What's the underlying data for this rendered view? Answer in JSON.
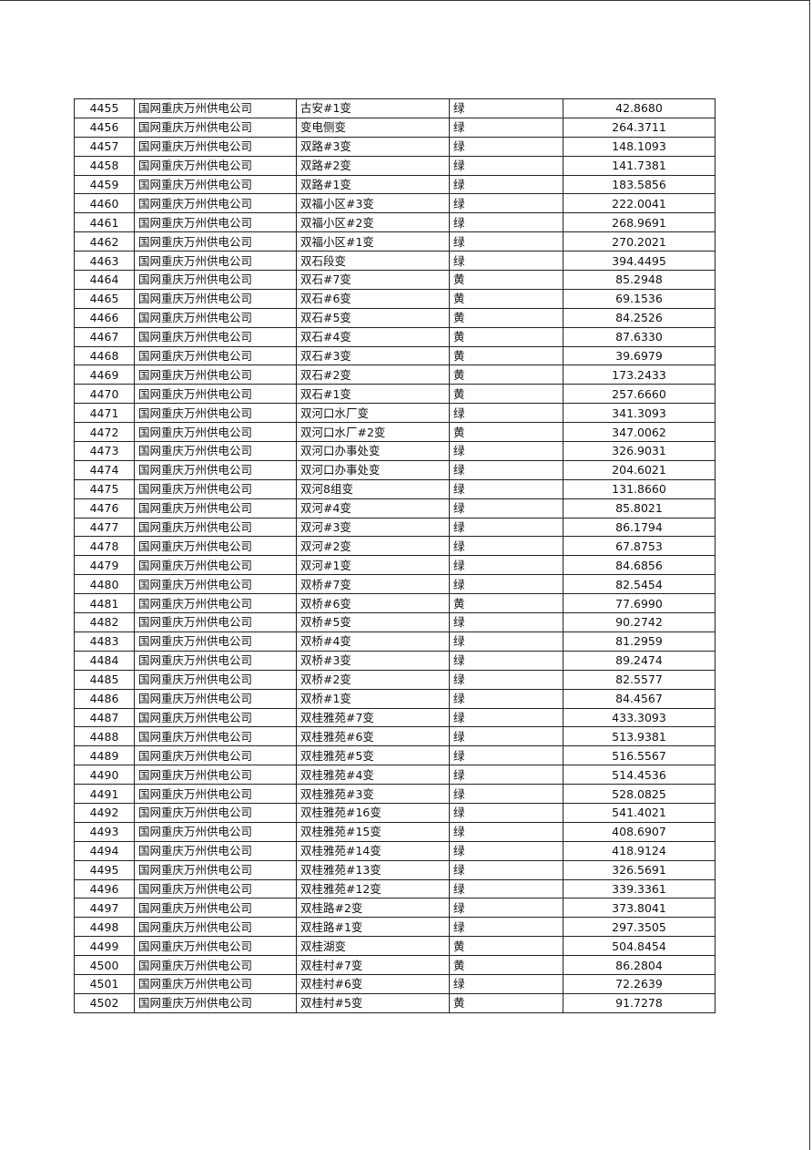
{
  "rows": [
    [
      "4455",
      "国网重庆万州供电公司",
      "古安#1变",
      "绿",
      "42.8680"
    ],
    [
      "4456",
      "国网重庆万州供电公司",
      "变电侧变",
      "绿",
      "264.3711"
    ],
    [
      "4457",
      "国网重庆万州供电公司",
      "双路#3变",
      "绿",
      "148.1093"
    ],
    [
      "4458",
      "国网重庆万州供电公司",
      "双路#2变",
      "绿",
      "141.7381"
    ],
    [
      "4459",
      "国网重庆万州供电公司",
      "双路#1变",
      "绿",
      "183.5856"
    ],
    [
      "4460",
      "国网重庆万州供电公司",
      "双福小区#3变",
      "绿",
      "222.0041"
    ],
    [
      "4461",
      "国网重庆万州供电公司",
      "双福小区#2变",
      "绿",
      "268.9691"
    ],
    [
      "4462",
      "国网重庆万州供电公司",
      "双福小区#1变",
      "绿",
      "270.2021"
    ],
    [
      "4463",
      "国网重庆万州供电公司",
      "双石段变",
      "绿",
      "394.4495"
    ],
    [
      "4464",
      "国网重庆万州供电公司",
      "双石#7变",
      "黄",
      "85.2948"
    ],
    [
      "4465",
      "国网重庆万州供电公司",
      "双石#6变",
      "黄",
      "69.1536"
    ],
    [
      "4466",
      "国网重庆万州供电公司",
      "双石#5变",
      "黄",
      "84.2526"
    ],
    [
      "4467",
      "国网重庆万州供电公司",
      "双石#4变",
      "黄",
      "87.6330"
    ],
    [
      "4468",
      "国网重庆万州供电公司",
      "双石#3变",
      "黄",
      "39.6979"
    ],
    [
      "4469",
      "国网重庆万州供电公司",
      "双石#2变",
      "黄",
      "173.2433"
    ],
    [
      "4470",
      "国网重庆万州供电公司",
      "双石#1变",
      "黄",
      "257.6660"
    ],
    [
      "4471",
      "国网重庆万州供电公司",
      "双河口水厂变",
      "绿",
      "341.3093"
    ],
    [
      "4472",
      "国网重庆万州供电公司",
      "双河口水厂#2变",
      "黄",
      "347.0062"
    ],
    [
      "4473",
      "国网重庆万州供电公司",
      "双河口办事处变",
      "绿",
      "326.9031"
    ],
    [
      "4474",
      "国网重庆万州供电公司",
      "双河口办事处变",
      "绿",
      "204.6021"
    ],
    [
      "4475",
      "国网重庆万州供电公司",
      "双河8组变",
      "绿",
      "131.8660"
    ],
    [
      "4476",
      "国网重庆万州供电公司",
      "双河#4变",
      "绿",
      "85.8021"
    ],
    [
      "4477",
      "国网重庆万州供电公司",
      "双河#3变",
      "绿",
      "86.1794"
    ],
    [
      "4478",
      "国网重庆万州供电公司",
      "双河#2变",
      "绿",
      "67.8753"
    ],
    [
      "4479",
      "国网重庆万州供电公司",
      "双河#1变",
      "绿",
      "84.6856"
    ],
    [
      "4480",
      "国网重庆万州供电公司",
      "双桥#7变",
      "绿",
      "82.5454"
    ],
    [
      "4481",
      "国网重庆万州供电公司",
      "双桥#6变",
      "黄",
      "77.6990"
    ],
    [
      "4482",
      "国网重庆万州供电公司",
      "双桥#5变",
      "绿",
      "90.2742"
    ],
    [
      "4483",
      "国网重庆万州供电公司",
      "双桥#4变",
      "绿",
      "81.2959"
    ],
    [
      "4484",
      "国网重庆万州供电公司",
      "双桥#3变",
      "绿",
      "89.2474"
    ],
    [
      "4485",
      "国网重庆万州供电公司",
      "双桥#2变",
      "绿",
      "82.5577"
    ],
    [
      "4486",
      "国网重庆万州供电公司",
      "双桥#1变",
      "绿",
      "84.4567"
    ],
    [
      "4487",
      "国网重庆万州供电公司",
      "双桂雅苑#7变",
      "绿",
      "433.3093"
    ],
    [
      "4488",
      "国网重庆万州供电公司",
      "双桂雅苑#6变",
      "绿",
      "513.9381"
    ],
    [
      "4489",
      "国网重庆万州供电公司",
      "双桂雅苑#5变",
      "绿",
      "516.5567"
    ],
    [
      "4490",
      "国网重庆万州供电公司",
      "双桂雅苑#4变",
      "绿",
      "514.4536"
    ],
    [
      "4491",
      "国网重庆万州供电公司",
      "双桂雅苑#3变",
      "绿",
      "528.0825"
    ],
    [
      "4492",
      "国网重庆万州供电公司",
      "双桂雅苑#16变",
      "绿",
      "541.4021"
    ],
    [
      "4493",
      "国网重庆万州供电公司",
      "双桂雅苑#15变",
      "绿",
      "408.6907"
    ],
    [
      "4494",
      "国网重庆万州供电公司",
      "双桂雅苑#14变",
      "绿",
      "418.9124"
    ],
    [
      "4495",
      "国网重庆万州供电公司",
      "双桂雅苑#13变",
      "绿",
      "326.5691"
    ],
    [
      "4496",
      "国网重庆万州供电公司",
      "双桂雅苑#12变",
      "绿",
      "339.3361"
    ],
    [
      "4497",
      "国网重庆万州供电公司",
      "双桂路#2变",
      "绿",
      "373.8041"
    ],
    [
      "4498",
      "国网重庆万州供电公司",
      "双桂路#1变",
      "绿",
      "297.3505"
    ],
    [
      "4499",
      "国网重庆万州供电公司",
      "双桂湖变",
      "黄",
      "504.8454"
    ],
    [
      "4500",
      "国网重庆万州供电公司",
      "双桂村#7变",
      "黄",
      "86.2804"
    ],
    [
      "4501",
      "国网重庆万州供电公司",
      "双桂村#6变",
      "绿",
      "72.2639"
    ],
    [
      "4502",
      "国网重庆万州供电公司",
      "双桂村#5变",
      "黄",
      "91.7278"
    ]
  ]
}
